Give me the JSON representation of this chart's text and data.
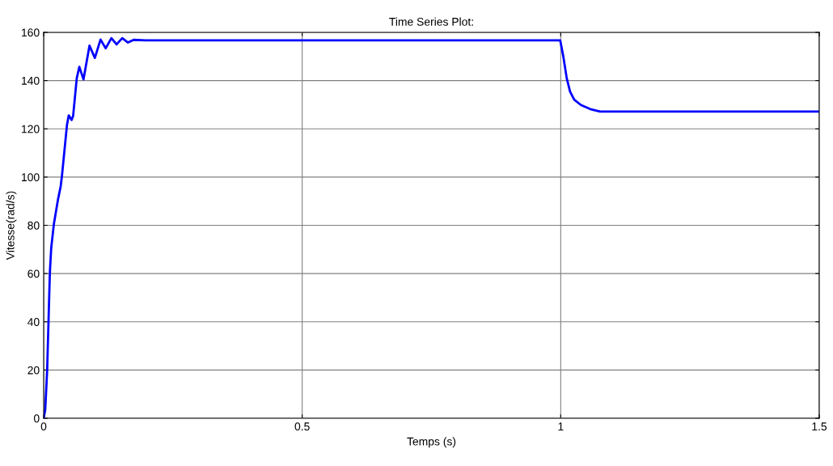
{
  "chart_data": {
    "type": "line",
    "title": "Time Series Plot:",
    "xlabel": "Temps (s)",
    "ylabel": "Vitesse(rad/s)",
    "xlim": [
      0,
      1.5
    ],
    "ylim": [
      0,
      160
    ],
    "xticks": [
      0,
      0.5,
      1,
      1.5
    ],
    "yticks": [
      0,
      20,
      40,
      60,
      80,
      100,
      120,
      140,
      160
    ],
    "grid": true,
    "series": [
      {
        "color": "#0000ff",
        "x": [
          0,
          0.003,
          0.0068,
          0.0094,
          0.012,
          0.0146,
          0.0198,
          0.0277,
          0.033,
          0.0355,
          0.045,
          0.0485,
          0.054,
          0.057,
          0.064,
          0.069,
          0.077,
          0.0886,
          0.099,
          0.11,
          0.12,
          0.131,
          0.141,
          0.152,
          0.163,
          0.174,
          0.197,
          0.228,
          0.999,
          1.005,
          1.0116,
          1.018,
          1.026,
          1.039,
          1.057,
          1.076,
          1.5
        ],
        "values": [
          0,
          3.5,
          20.2,
          40.4,
          60.5,
          70.6,
          80.6,
          90.7,
          96.3,
          100.8,
          121.5,
          125.6,
          123.7,
          125.4,
          141,
          145.7,
          140.5,
          154.5,
          149.4,
          157,
          153.4,
          157.6,
          155,
          157.6,
          155.8,
          156.9,
          156.7,
          156.7,
          156.7,
          150,
          141,
          135.5,
          132.1,
          129.9,
          128.2,
          127.2,
          127.2
        ]
      }
    ]
  }
}
